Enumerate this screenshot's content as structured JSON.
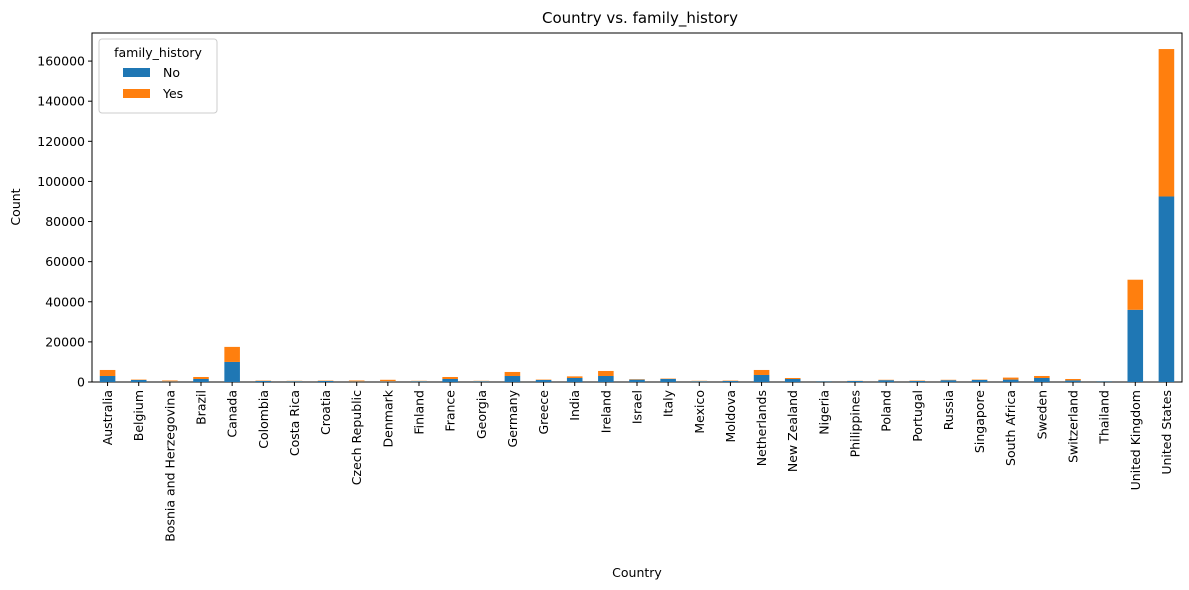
{
  "chart_data": {
    "type": "bar",
    "stacked": true,
    "title": "Country vs. family_history",
    "xlabel": "Country",
    "ylabel": "Count",
    "ylim": [
      0,
      174000
    ],
    "yticks": [
      0,
      20000,
      40000,
      60000,
      80000,
      100000,
      120000,
      140000,
      160000
    ],
    "legend": {
      "title": "family_history",
      "placement": "top-left"
    },
    "categories": [
      "Australia",
      "Belgium",
      "Bosnia and Herzegovina",
      "Brazil",
      "Canada",
      "Colombia",
      "Costa Rica",
      "Croatia",
      "Czech Republic",
      "Denmark",
      "Finland",
      "France",
      "Georgia",
      "Germany",
      "Greece",
      "India",
      "Ireland",
      "Israel",
      "Italy",
      "Mexico",
      "Moldova",
      "Netherlands",
      "New Zealand",
      "Nigeria",
      "Philippines",
      "Poland",
      "Portugal",
      "Russia",
      "Singapore",
      "South Africa",
      "Sweden",
      "Switzerland",
      "Thailand",
      "United Kingdom",
      "United States"
    ],
    "series": [
      {
        "name": "No",
        "color": "#1f77b4",
        "values": [
          3000,
          1000,
          250,
          1500,
          10000,
          500,
          400,
          500,
          250,
          300,
          400,
          1500,
          400,
          3000,
          1000,
          2000,
          3000,
          1200,
          1500,
          400,
          500,
          3500,
          1500,
          400,
          500,
          900,
          500,
          900,
          1000,
          1200,
          2000,
          800,
          400,
          36000,
          92500
        ]
      },
      {
        "name": "Yes",
        "color": "#ff7f0e",
        "values": [
          3000,
          200,
          500,
          1000,
          7500,
          200,
          200,
          200,
          500,
          800,
          200,
          1000,
          200,
          2000,
          200,
          800,
          2500,
          200,
          200,
          200,
          200,
          2500,
          500,
          100,
          100,
          200,
          200,
          200,
          200,
          1000,
          1000,
          700,
          100,
          15000,
          73500
        ]
      }
    ]
  }
}
